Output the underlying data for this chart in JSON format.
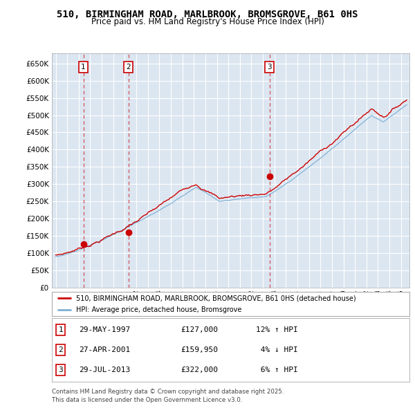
{
  "title": "510, BIRMINGHAM ROAD, MARLBROOK, BROMSGROVE, B61 0HS",
  "subtitle": "Price paid vs. HM Land Registry's House Price Index (HPI)",
  "ylim": [
    0,
    680000
  ],
  "ytick_values": [
    0,
    50000,
    100000,
    150000,
    200000,
    250000,
    300000,
    350000,
    400000,
    450000,
    500000,
    550000,
    600000,
    650000
  ],
  "sale_dates": [
    "1997-05-29",
    "2001-04-27",
    "2013-07-29"
  ],
  "sale_prices": [
    127000,
    159950,
    322000
  ],
  "red_line_color": "#cc0000",
  "blue_line_color": "#7bafd4",
  "plot_bg_color": "#dce6f1",
  "grid_color": "#ffffff",
  "legend_label_red": "510, BIRMINGHAM ROAD, MARLBROOK, BROMSGROVE, B61 0HS (detached house)",
  "legend_label_blue": "HPI: Average price, detached house, Bromsgrove",
  "table_rows": [
    [
      "1",
      "29-MAY-1997",
      "£127,000",
      "12% ↑ HPI"
    ],
    [
      "2",
      "27-APR-2001",
      "£159,950",
      " 4% ↓ HPI"
    ],
    [
      "3",
      "29-JUL-2013",
      "£322,000",
      " 6% ↑ HPI"
    ]
  ],
  "footnote": "Contains HM Land Registry data © Crown copyright and database right 2025.\nThis data is licensed under the Open Government Licence v3.0."
}
